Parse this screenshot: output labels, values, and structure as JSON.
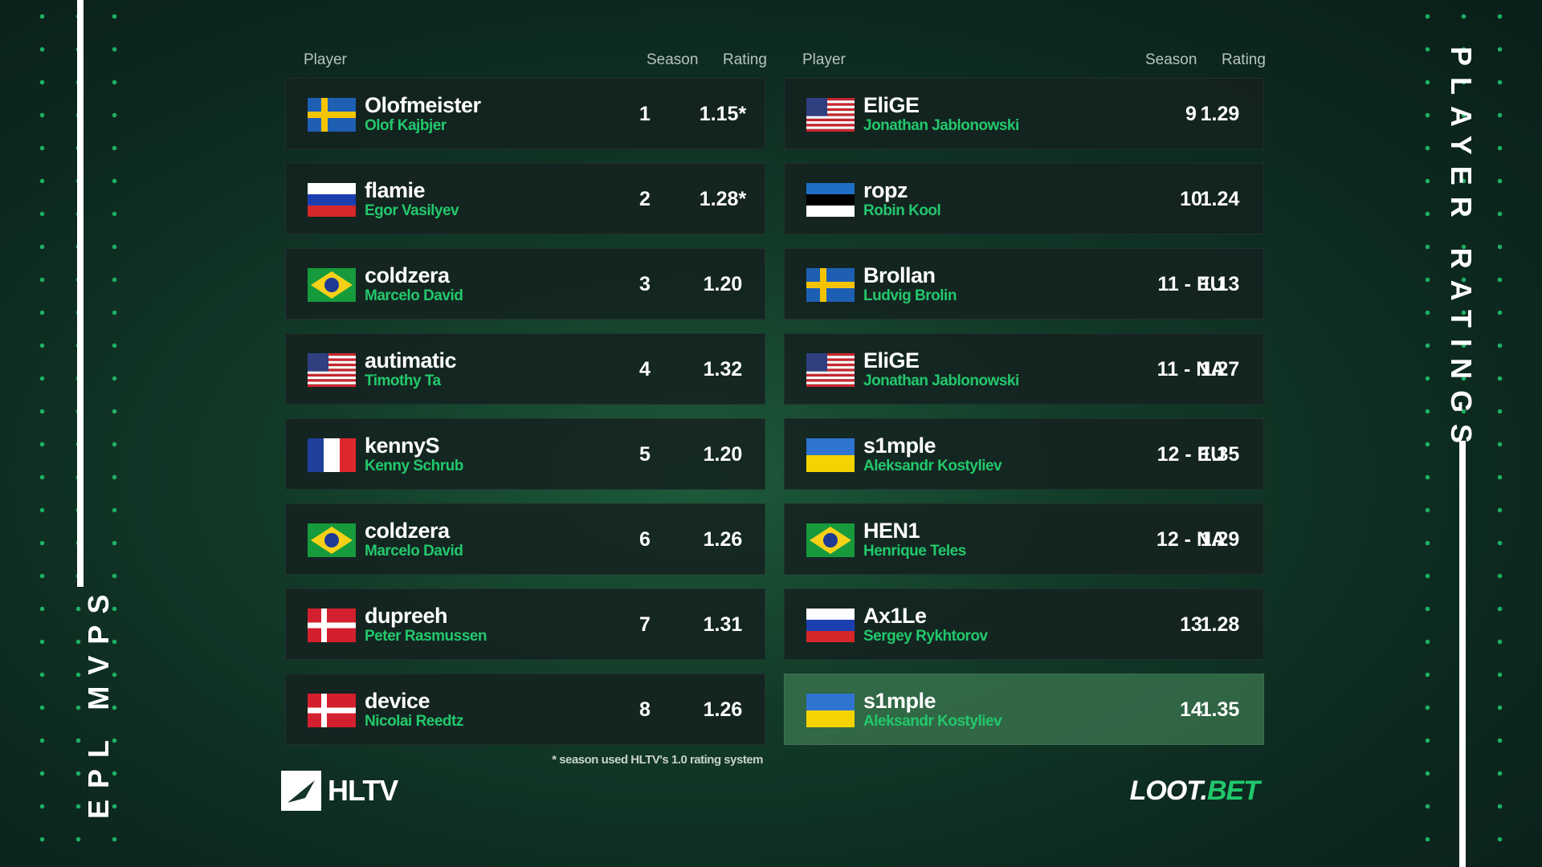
{
  "side_left": "EPL MVPS",
  "side_right": "PLAYER RATINGS",
  "tables": [
    {
      "headers": [
        "Player",
        "Season",
        "Rating"
      ],
      "rows": [
        {
          "nick": "Olofmeister",
          "name": "Olof Kajbjer",
          "season": "1",
          "rating": "1.15*"
        },
        {
          "nick": "flamie",
          "name": "Egor Vasilyev",
          "season": "2",
          "rating": "1.28*"
        },
        {
          "nick": "coldzera",
          "name": "Marcelo David",
          "season": "3",
          "rating": "1.20"
        },
        {
          "nick": "autimatic",
          "name": "Timothy Ta",
          "season": "4",
          "rating": "1.32"
        },
        {
          "nick": "kennyS",
          "name": "Kenny Schrub",
          "season": "5",
          "rating": "1.20"
        },
        {
          "nick": "coldzera",
          "name": "Marcelo David",
          "season": "6",
          "rating": "1.26"
        },
        {
          "nick": "dupreeh",
          "name": "Peter Rasmussen",
          "season": "7",
          "rating": "1.31"
        },
        {
          "nick": "device",
          "name": "Nicolai Reedtz",
          "season": "8",
          "rating": "1.26"
        }
      ]
    },
    {
      "headers": [
        "Player",
        "Season",
        "Rating"
      ],
      "rows": [
        {
          "nick": "EliGE",
          "name": "Jonathan Jablonowski",
          "season": "9",
          "rating": "1.29"
        },
        {
          "nick": "ropz",
          "name": "Robin Kool",
          "season": "10",
          "rating": "1.24"
        },
        {
          "nick": "Brollan",
          "name": "Ludvig Brolin",
          "season": "11 - EU",
          "rating": "1.13"
        },
        {
          "nick": "EliGE",
          "name": "Jonathan Jablonowski",
          "season": "11 - NA",
          "rating": "1.27"
        },
        {
          "nick": "s1mple",
          "name": "Aleksandr Kostyliev",
          "season": "12 - EU",
          "rating": "1.35"
        },
        {
          "nick": "HEN1",
          "name": "Henrique Teles",
          "season": "12 - NA",
          "rating": "1.29"
        },
        {
          "nick": "Ax1Le",
          "name": "Sergey Rykhtorov",
          "season": "13",
          "rating": "1.28"
        },
        {
          "nick": "s1mple",
          "name": "Aleksandr Kostyliev",
          "season": "14",
          "rating": "1.35"
        }
      ]
    }
  ],
  "footnote": "* season used HLTV's 1.0 rating system",
  "logo_left": "HLTV",
  "logo_right": {
    "part1": "LOOT.",
    "part2": "BET"
  }
}
